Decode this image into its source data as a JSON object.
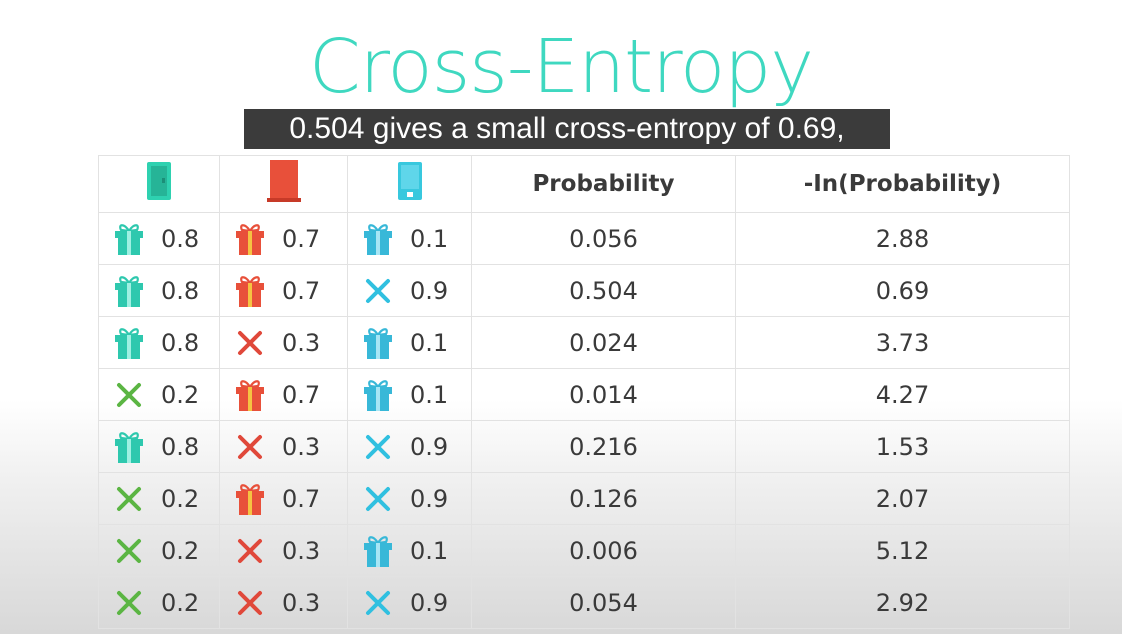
{
  "title": "Cross-Entropy",
  "caption": "0.504 gives a small cross-entropy of 0.69,",
  "colors": {
    "title": "#3fd8c0",
    "door1": "#2ed1b0",
    "door2": "#e8503a",
    "door3": "#38c8de",
    "gift_green": "#2ec8ae",
    "gift_red": "#e8503a",
    "gift_blue": "#38b8d8",
    "cross_green": "#5bb543",
    "cross_red": "#e0483a",
    "cross_blue": "#30c0e0"
  },
  "table": {
    "doors": [
      {
        "icon": "green-door-icon"
      },
      {
        "icon": "red-door-icon"
      },
      {
        "icon": "blue-door-icon"
      }
    ],
    "headers": [
      "Probability",
      "-In(Probability)"
    ],
    "rows": [
      {
        "cells": [
          {
            "icon": "gift",
            "p": "0.8"
          },
          {
            "icon": "gift",
            "p": "0.7"
          },
          {
            "icon": "gift",
            "p": "0.1"
          }
        ],
        "probability": "0.056",
        "neg_ln": "2.88"
      },
      {
        "cells": [
          {
            "icon": "gift",
            "p": "0.8"
          },
          {
            "icon": "gift",
            "p": "0.7"
          },
          {
            "icon": "cross",
            "p": "0.9"
          }
        ],
        "probability": "0.504",
        "neg_ln": "0.69"
      },
      {
        "cells": [
          {
            "icon": "gift",
            "p": "0.8"
          },
          {
            "icon": "cross",
            "p": "0.3"
          },
          {
            "icon": "gift",
            "p": "0.1"
          }
        ],
        "probability": "0.024",
        "neg_ln": "3.73"
      },
      {
        "cells": [
          {
            "icon": "cross",
            "p": "0.2"
          },
          {
            "icon": "gift",
            "p": "0.7"
          },
          {
            "icon": "gift",
            "p": "0.1"
          }
        ],
        "probability": "0.014",
        "neg_ln": "4.27"
      },
      {
        "cells": [
          {
            "icon": "gift",
            "p": "0.8"
          },
          {
            "icon": "cross",
            "p": "0.3"
          },
          {
            "icon": "cross",
            "p": "0.9"
          }
        ],
        "probability": "0.216",
        "neg_ln": "1.53"
      },
      {
        "cells": [
          {
            "icon": "cross",
            "p": "0.2"
          },
          {
            "icon": "gift",
            "p": "0.7"
          },
          {
            "icon": "cross",
            "p": "0.9"
          }
        ],
        "probability": "0.126",
        "neg_ln": "2.07"
      },
      {
        "cells": [
          {
            "icon": "cross",
            "p": "0.2"
          },
          {
            "icon": "cross",
            "p": "0.3"
          },
          {
            "icon": "gift",
            "p": "0.1"
          }
        ],
        "probability": "0.006",
        "neg_ln": "5.12"
      },
      {
        "cells": [
          {
            "icon": "cross",
            "p": "0.2"
          },
          {
            "icon": "cross",
            "p": "0.3"
          },
          {
            "icon": "cross",
            "p": "0.9"
          }
        ],
        "probability": "0.054",
        "neg_ln": "2.92"
      }
    ]
  }
}
